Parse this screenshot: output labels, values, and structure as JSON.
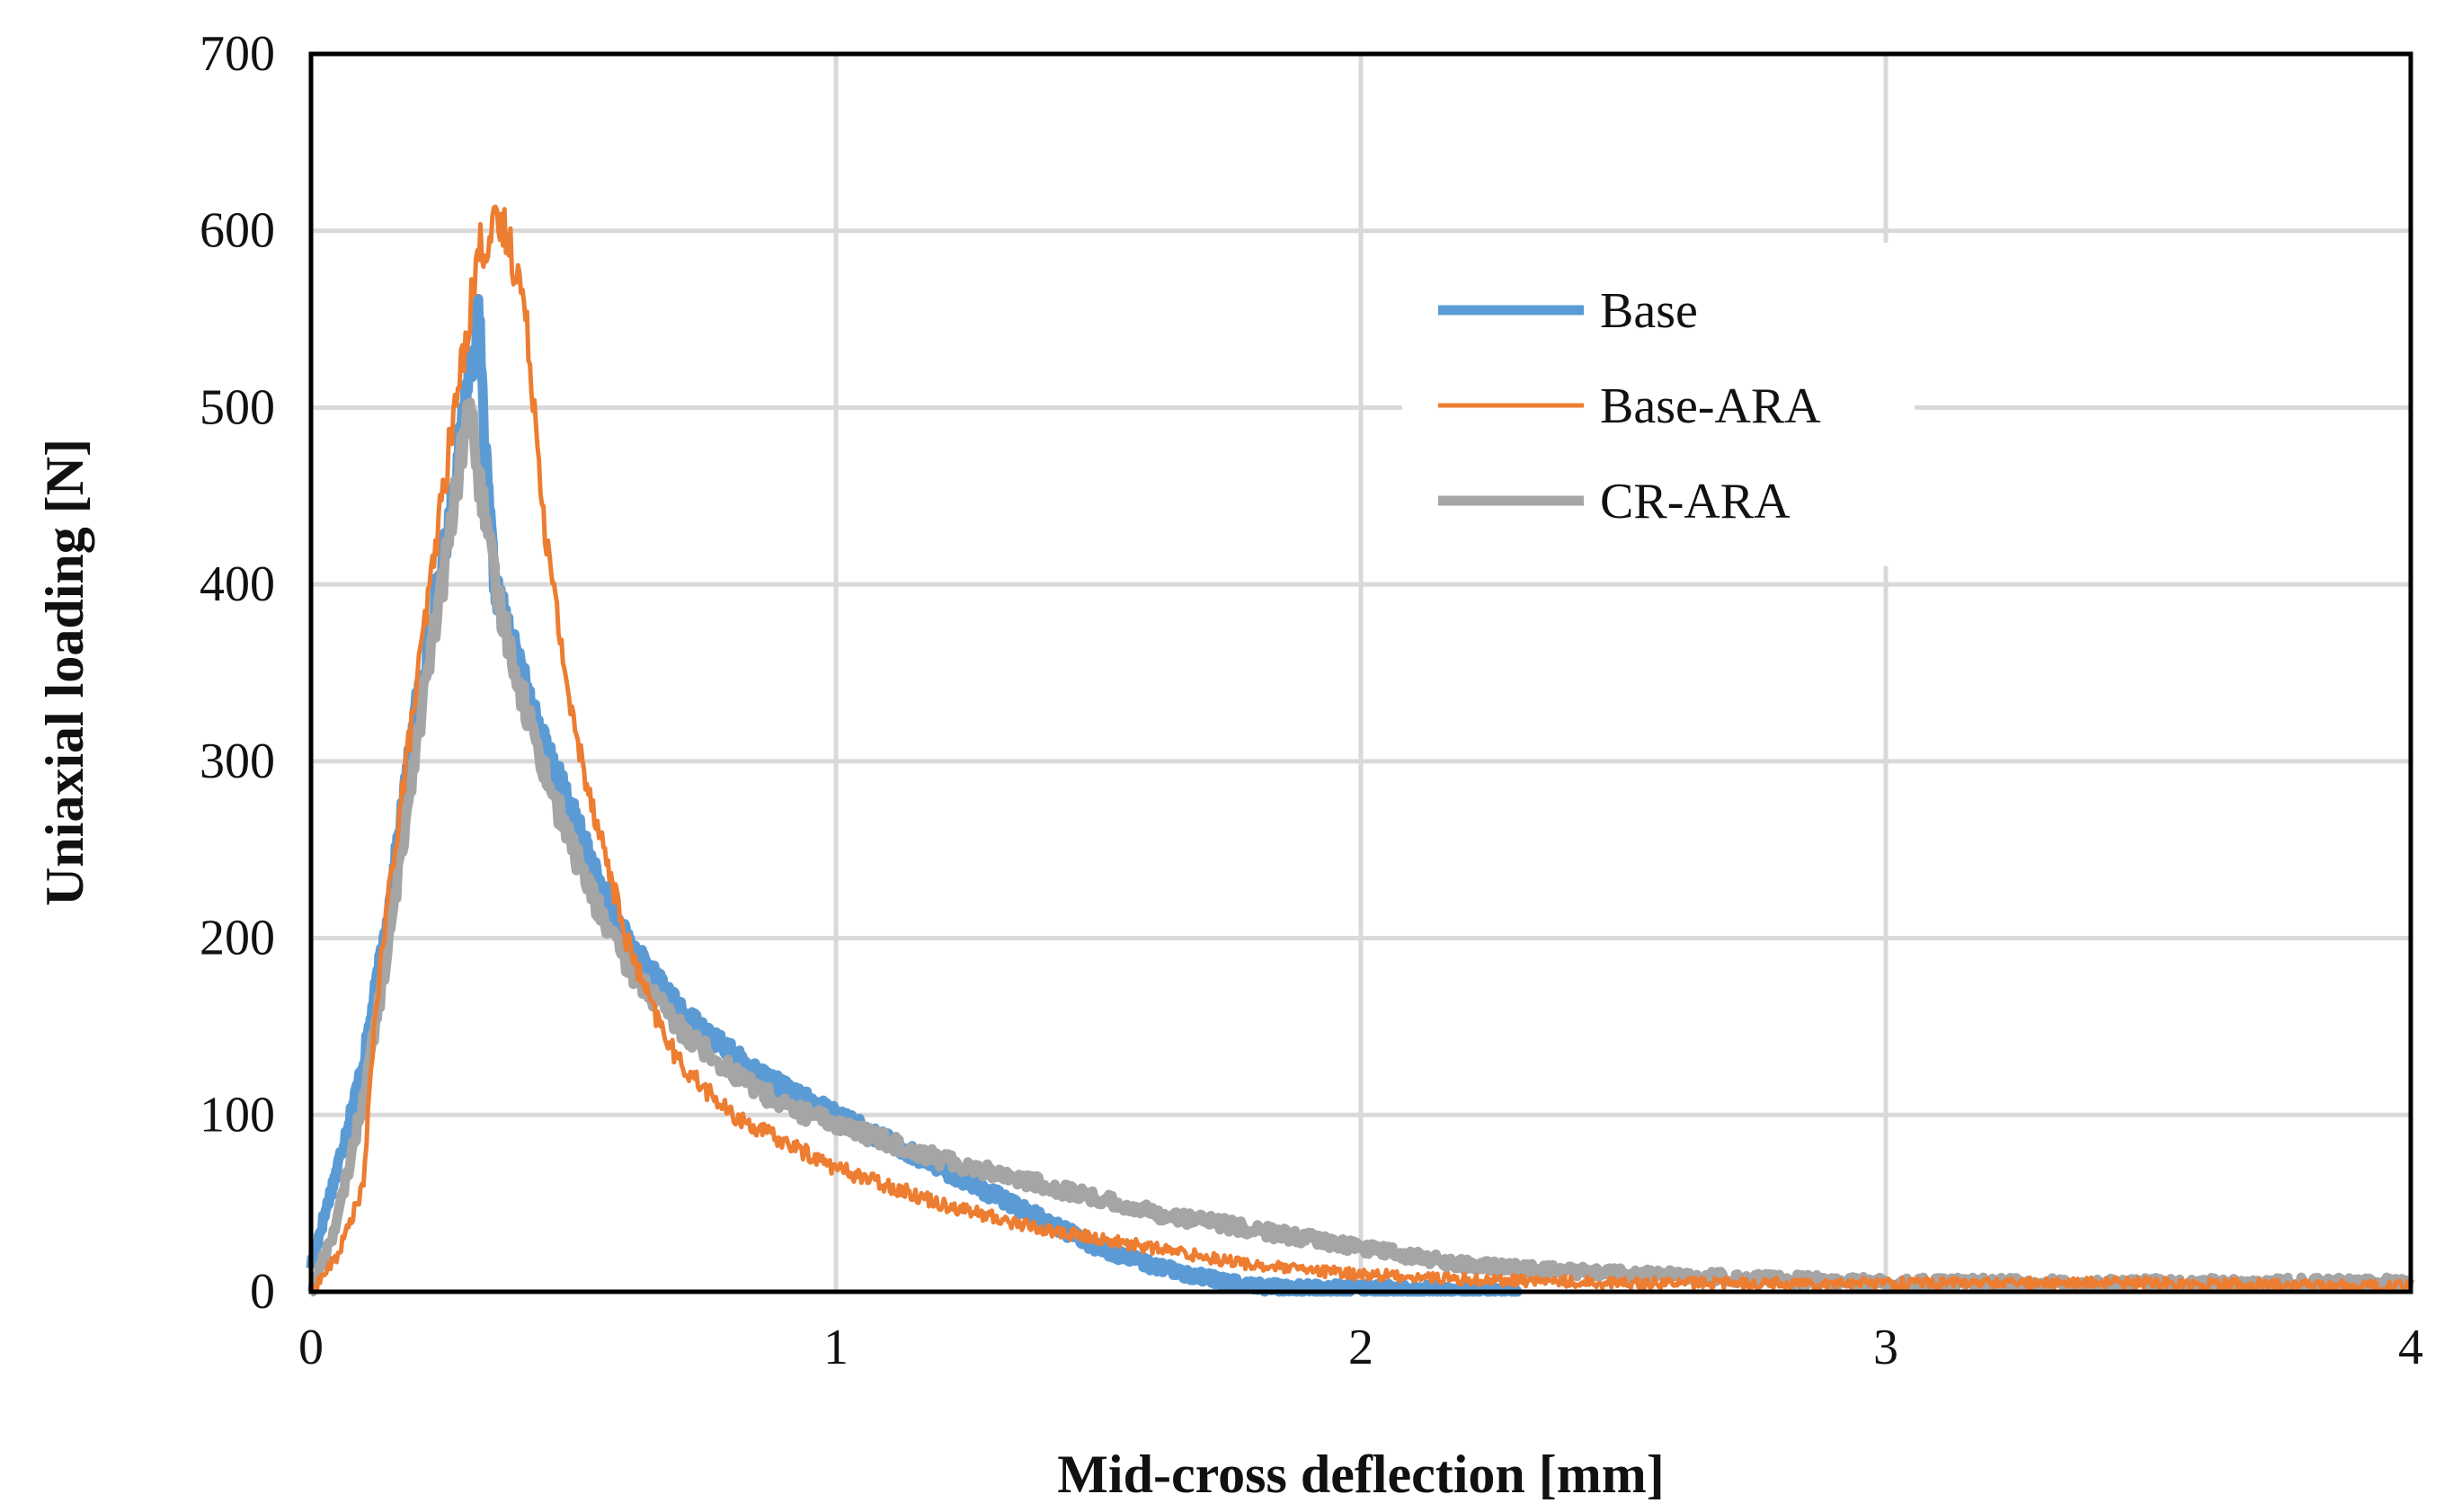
{
  "chart_data": {
    "type": "line",
    "title": "",
    "xlabel": "Mid-cross deflection [mm]",
    "ylabel": "Uniaxial loading [N]",
    "xlim": [
      0,
      4
    ],
    "ylim": [
      0,
      700
    ],
    "x_ticks": [
      0,
      1,
      2,
      3,
      4
    ],
    "y_ticks": [
      0,
      100,
      200,
      300,
      400,
      500,
      600,
      700
    ],
    "grid": true,
    "legend_position": "top-right",
    "series": [
      {
        "name": "Base",
        "color": "#5B9BD5",
        "line": "thick",
        "x": [
          0,
          0.05,
          0.1,
          0.15,
          0.2,
          0.25,
          0.28,
          0.3,
          0.32,
          0.33,
          0.35,
          0.4,
          0.45,
          0.5,
          0.55,
          0.6,
          0.7,
          0.8,
          0.9,
          1.0,
          1.1,
          1.2,
          1.3,
          1.4,
          1.5,
          1.6,
          1.7,
          1.8,
          1.9,
          2.0,
          2.1,
          2.2,
          2.3
        ],
        "y": [
          15,
          70,
          130,
          220,
          330,
          410,
          470,
          520,
          550,
          480,
          400,
          350,
          305,
          270,
          230,
          200,
          160,
          135,
          115,
          100,
          85,
          70,
          55,
          40,
          25,
          15,
          8,
          3,
          2,
          2,
          1,
          1,
          0
        ]
      },
      {
        "name": "Base-ARA",
        "color": "#ED7D31",
        "line": "thin",
        "x": [
          0,
          0.05,
          0.1,
          0.12,
          0.15,
          0.2,
          0.25,
          0.3,
          0.32,
          0.35,
          0.37,
          0.4,
          0.42,
          0.45,
          0.5,
          0.55,
          0.6,
          0.65,
          0.7,
          0.8,
          0.9,
          1.0,
          1.1,
          1.2,
          1.3,
          1.4,
          1.5,
          1.6,
          1.7,
          1.8,
          1.9,
          2.0,
          2.2,
          2.5,
          3.0,
          3.5,
          4.0
        ],
        "y": [
          0,
          20,
          60,
          150,
          230,
          340,
          450,
          550,
          590,
          600,
          600,
          570,
          520,
          420,
          320,
          260,
          200,
          160,
          130,
          100,
          85,
          70,
          60,
          50,
          42,
          35,
          30,
          25,
          20,
          15,
          12,
          10,
          7,
          5,
          5,
          5,
          3
        ]
      },
      {
        "name": "CR-ARA",
        "color": "#A5A5A5",
        "line": "thick",
        "x": [
          0,
          0.05,
          0.1,
          0.15,
          0.2,
          0.25,
          0.28,
          0.3,
          0.32,
          0.35,
          0.4,
          0.45,
          0.5,
          0.55,
          0.6,
          0.7,
          0.8,
          0.9,
          1.0,
          1.2,
          1.4,
          1.6,
          1.8,
          2.0,
          2.2,
          2.5,
          3.0,
          3.5,
          4.0
        ],
        "y": [
          0,
          40,
          110,
          200,
          310,
          400,
          460,
          505,
          460,
          400,
          340,
          290,
          250,
          215,
          185,
          150,
          125,
          105,
          95,
          75,
          60,
          45,
          35,
          25,
          15,
          10,
          5,
          5,
          5
        ]
      }
    ]
  }
}
